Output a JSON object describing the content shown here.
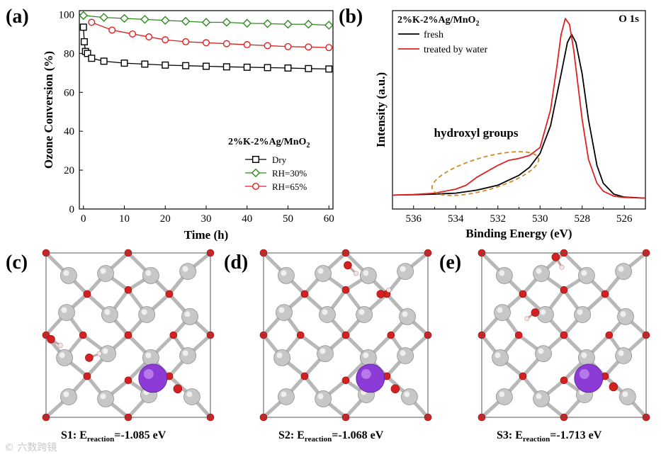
{
  "figure": {
    "panel_labels": {
      "a": "(a)",
      "b": "(b)",
      "c": "(c)",
      "d": "(d)",
      "e": "(e)"
    },
    "captions": {
      "c": {
        "prefix": "S1: E",
        "sub": "reaction",
        "suffix": "=-1.085 eV"
      },
      "d": {
        "prefix": "S2: E",
        "sub": "reaction",
        "suffix": "=-1.068 eV"
      },
      "e": {
        "prefix": "S3: E",
        "sub": "reaction",
        "suffix": "=-1.713 eV"
      }
    },
    "watermark": "六数跨镜",
    "colors": {
      "black": "#000000",
      "green": "#2e8b1e",
      "red": "#e02020",
      "orange": "#d08a28",
      "purple": "#8d3bd6",
      "gray": "#c7c7c7",
      "o_red": "#d42020"
    }
  },
  "chart_data": [
    {
      "type": "line",
      "panel": "a",
      "xlabel": "Time (h)",
      "ylabel": "Ozone Conversion (%)",
      "xlim": [
        -1,
        61
      ],
      "ylim": [
        0,
        102
      ],
      "xticks": [
        "0",
        "10",
        "20",
        "30",
        "40",
        "50",
        "60"
      ],
      "yticks": [
        "0",
        "20",
        "40",
        "60",
        "80",
        "100"
      ],
      "legend_title": {
        "base": "2%K-2%Ag/MnO",
        "sub": "2"
      },
      "series": [
        {
          "name": "Dry",
          "marker": "square",
          "color": "#000000",
          "x": [
            0,
            0.2,
            0.5,
            1,
            2,
            5,
            10,
            15,
            20,
            25,
            30,
            35,
            40,
            45,
            50,
            55,
            60
          ],
          "y": [
            93.5,
            86,
            81,
            80,
            77.5,
            76,
            75,
            74.5,
            74,
            73.7,
            73.4,
            73.1,
            72.9,
            72.7,
            72.5,
            72.2,
            72
          ]
        },
        {
          "name": "RH=30%",
          "marker": "diamond",
          "color": "#2e8b1e",
          "x": [
            0,
            5,
            10,
            15,
            20,
            25,
            30,
            35,
            40,
            45,
            50,
            55,
            60
          ],
          "y": [
            99.5,
            98.5,
            98,
            97.5,
            97,
            96.5,
            96,
            96,
            95.5,
            95.3,
            95,
            95,
            94.5
          ]
        },
        {
          "name": "RH=65%",
          "marker": "circle",
          "color": "#e02020",
          "x": [
            2,
            7,
            12,
            16,
            20,
            25,
            30,
            35,
            40,
            45,
            50,
            55,
            60
          ],
          "y": [
            96,
            92,
            90,
            88.5,
            87,
            86,
            85.5,
            85,
            84.5,
            84,
            83.5,
            83.3,
            83
          ]
        }
      ]
    },
    {
      "type": "line",
      "panel": "b",
      "xlabel": "Binding Energy (eV)",
      "ylabel": "Intensity (a.u.)",
      "xlim": [
        537,
        525
      ],
      "ylim": [
        0,
        1
      ],
      "xticks": [
        "536",
        "534",
        "532",
        "530",
        "528",
        "526"
      ],
      "title": {
        "base": "2%K-2%Ag/MnO",
        "sub": "2"
      },
      "annotation_right": "O 1s",
      "annotation": "hydroxyl groups",
      "series": [
        {
          "name": "fresh",
          "color": "#000000",
          "x": [
            537,
            536,
            535,
            534,
            533,
            532,
            531,
            530.5,
            530,
            529.5,
            529,
            528.7,
            528.5,
            528.3,
            528,
            527.7,
            527.3,
            527,
            526.5,
            526,
            525
          ],
          "y": [
            0.07,
            0.072,
            0.075,
            0.08,
            0.095,
            0.12,
            0.17,
            0.21,
            0.28,
            0.42,
            0.68,
            0.84,
            0.88,
            0.84,
            0.68,
            0.45,
            0.22,
            0.13,
            0.075,
            0.06,
            0.055
          ]
        },
        {
          "name": "treated by water",
          "color": "#e02020",
          "x": [
            537,
            536,
            535,
            534,
            533.5,
            533,
            532,
            531.5,
            531,
            530.5,
            530,
            529.5,
            529.2,
            529,
            528.8,
            528.6,
            528.4,
            528,
            527.7,
            527.3,
            527,
            526.5,
            526,
            525
          ],
          "y": [
            0.07,
            0.073,
            0.08,
            0.1,
            0.12,
            0.16,
            0.22,
            0.245,
            0.255,
            0.27,
            0.31,
            0.5,
            0.72,
            0.88,
            0.96,
            0.93,
            0.8,
            0.45,
            0.25,
            0.13,
            0.09,
            0.065,
            0.058,
            0.055
          ]
        }
      ]
    }
  ]
}
